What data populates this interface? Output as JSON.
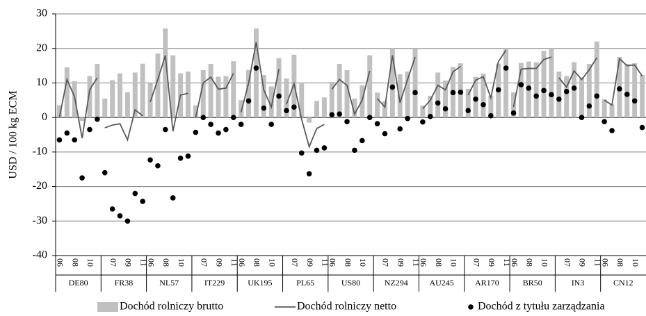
{
  "chart_data": {
    "type": "combo",
    "y_label": "USD / 100 kg ECM",
    "groups": [
      "DE80",
      "FR38",
      "NL57",
      "IT229",
      "UK195",
      "PL65",
      "US80",
      "NZ294",
      "AU245",
      "AR170",
      "BR50",
      "IN3",
      "CN12"
    ],
    "categories": [
      "06",
      null,
      "08",
      null,
      "10",
      null,
      null,
      "07",
      null,
      "09",
      null,
      "11",
      "06",
      null,
      "08",
      null,
      "10",
      null,
      null,
      "07",
      null,
      "09",
      null,
      "11",
      "06",
      null,
      "08",
      null,
      "10",
      null,
      null,
      "07",
      null,
      "09",
      null,
      "11",
      "06",
      null,
      "08",
      null,
      "10",
      null,
      null,
      "07",
      null,
      "09",
      null,
      "11",
      "06",
      null,
      "08",
      null,
      "10",
      null,
      null,
      "07",
      null,
      "09",
      null,
      "11",
      "06",
      null,
      "08",
      null,
      "10",
      null,
      null,
      "07",
      null,
      "09",
      null,
      "11",
      "06",
      null,
      "08",
      null,
      "10",
      null
    ],
    "ylim": [
      -40,
      30
    ],
    "yticks": [
      -40,
      -30,
      -20,
      -10,
      0,
      10,
      20,
      30
    ],
    "grid": true,
    "series": [
      {
        "name": "Dochód rolniczy brutto",
        "type": "bar",
        "color": "#c0c0c0",
        "values": [
          3.5,
          14.5,
          10.5,
          -1,
          12,
          15.5,
          5.5,
          10.8,
          12.8,
          7.3,
          13,
          15.6,
          10,
          18.5,
          25.8,
          18,
          12.8,
          13.3,
          3.5,
          13.7,
          15.5,
          11.8,
          12,
          16.3,
          5,
          13.7,
          25.8,
          12.3,
          9,
          17.2,
          11.3,
          18.2,
          9.8,
          -1.5,
          4.8,
          5.8,
          10.3,
          15.5,
          13.7,
          5.5,
          9.3,
          18,
          7.2,
          4.7,
          20,
          12.5,
          13.3,
          20,
          3.5,
          6.3,
          13,
          10.7,
          14.6,
          15.7,
          8.3,
          11.8,
          12.7,
          6.3,
          15.6,
          20,
          7.3,
          15.8,
          16.2,
          16,
          19.3,
          20,
          13.3,
          12,
          16,
          11.5,
          15.5,
          22,
          5.3,
          3.8,
          17.5,
          15.5,
          15.7,
          12.3
        ]
      },
      {
        "name": "Dochód rolniczy netto",
        "type": "line",
        "color": "#595959",
        "values": [
          0,
          11,
          6,
          -6,
          8,
          11.5,
          -3,
          -2.2,
          -1.8,
          -6.5,
          2.2,
          0.5,
          4.5,
          11,
          18,
          -4,
          6.5,
          7,
          0,
          10,
          11.7,
          8.2,
          8.5,
          12.8,
          1.5,
          10,
          21.8,
          8,
          3,
          14,
          3.8,
          9.8,
          -0.5,
          -8.5,
          -3.2,
          -2,
          8.2,
          11,
          9.3,
          1,
          5,
          13.5,
          5.5,
          3,
          18,
          4.3,
          11,
          17.5,
          2.5,
          5,
          9.3,
          8,
          13.2,
          14.8,
          6.5,
          10.8,
          11.8,
          5.7,
          16.2,
          19.5,
          3,
          14,
          14.2,
          14.2,
          16.8,
          17.5,
          11.5,
          8.8,
          13.5,
          11,
          13.8,
          17.3,
          5,
          3.6,
          17,
          15,
          15.2,
          12
        ]
      },
      {
        "name": "Dochód z tytułu zarządzania",
        "type": "scatter",
        "color": "#000000",
        "values": [
          -6.5,
          -4.5,
          -6.5,
          -17.5,
          -3.5,
          -0.5,
          -16,
          -26.5,
          -28.5,
          -30,
          -22,
          -24.3,
          -12.3,
          -14,
          -3.5,
          -23.3,
          -11.8,
          -11.2,
          -4.3,
          0,
          -2,
          -4.5,
          -3.5,
          0,
          -2,
          4.8,
          14.3,
          2.7,
          -2,
          6.2,
          2,
          3,
          -10.3,
          -16.3,
          -9.5,
          -8.8,
          0.8,
          1,
          -1.2,
          -9.5,
          -6.7,
          0,
          -1.8,
          -4.7,
          8.8,
          -3.3,
          -0.3,
          7.2,
          -1.3,
          0.3,
          4.2,
          2.5,
          7.2,
          7.3,
          2,
          5.3,
          3.7,
          0.5,
          8,
          14.3,
          1.3,
          9.5,
          8.5,
          6.2,
          7.8,
          6.6,
          5.3,
          7.5,
          8.5,
          0,
          3.3,
          6.2,
          -1.2,
          -3.8,
          8.3,
          6.7,
          4.8,
          -2.9
        ]
      }
    ]
  }
}
